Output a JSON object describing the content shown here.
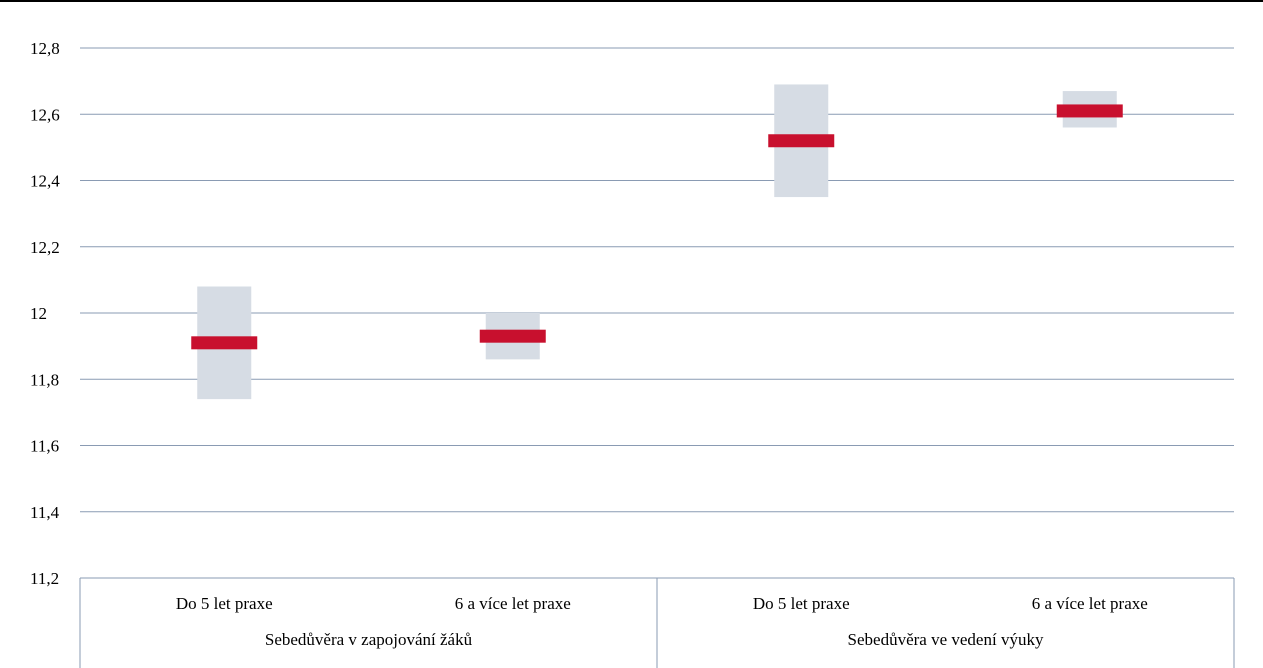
{
  "chart_data": {
    "type": "bar",
    "subtype": "range-with-mean",
    "title": "",
    "xlabel": "",
    "ylabel": "",
    "ylim": [
      11.2,
      12.8
    ],
    "yticks": [
      11.2,
      11.4,
      11.6,
      11.8,
      12,
      12.2,
      12.4,
      12.6,
      12.8
    ],
    "ytick_labels": [
      "11,2",
      "11,4",
      "11,6",
      "11,8",
      "12",
      "12,2",
      "12,4",
      "12,6",
      "12,8"
    ],
    "grid": true,
    "groups": [
      "Sebedůvěra v zapojování žáků",
      "Sebedůvěra ve vedení výuky"
    ],
    "categories": [
      "Do 5 let praxe",
      "6 a více let praxe",
      "Do 5 let praxe",
      "6 a více let praxe"
    ],
    "category_group": [
      0,
      0,
      1,
      1
    ],
    "series": [
      {
        "name": "",
        "values": [
          11.91,
          11.93,
          12.52,
          12.61
        ]
      }
    ],
    "ranges": [
      {
        "low": 11.74,
        "high": 12.08
      },
      {
        "low": 11.86,
        "high": 12.0
      },
      {
        "low": 12.35,
        "high": 12.69
      },
      {
        "low": 12.56,
        "high": 12.67
      }
    ],
    "colors": {
      "mean": "#c8102e",
      "range": "#d6dce4",
      "grid": "#8a9bb3",
      "axis": "#8a9bb3"
    }
  }
}
